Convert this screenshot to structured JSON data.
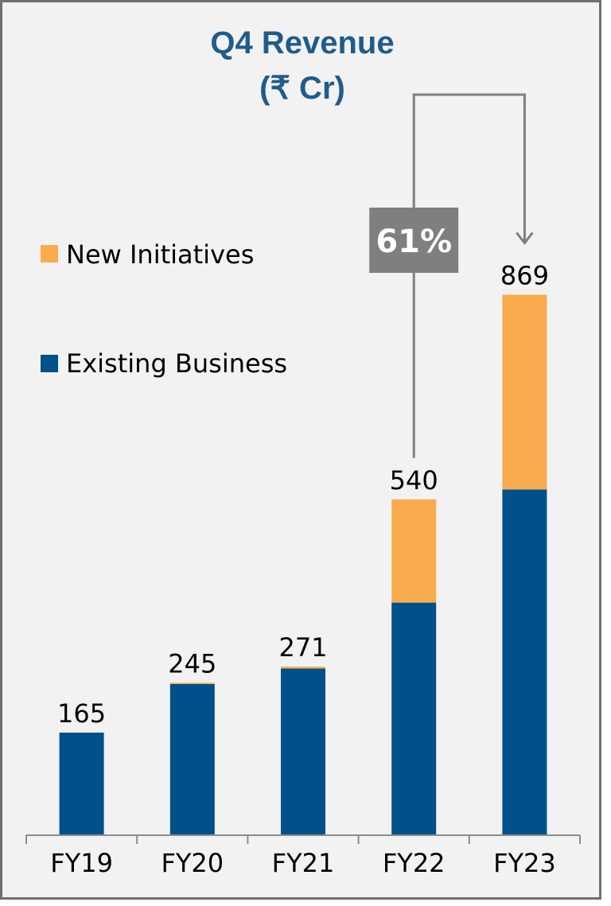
{
  "colors": {
    "existing": "#005089",
    "new": "#f9ac4d",
    "title": "#1f5c8b",
    "growth_badge": "#7f7f7f",
    "background": "#f2f2f2"
  },
  "chart_data": {
    "type": "bar",
    "stacked": true,
    "title": "Q4 Revenue",
    "subtitle": "(₹ Cr)",
    "categories": [
      "FY19",
      "FY20",
      "FY21",
      "FY22",
      "FY23"
    ],
    "series": [
      {
        "name": "Existing Business",
        "values": [
          165,
          243,
          268,
          374,
          556
        ]
      },
      {
        "name": "New Initiatives",
        "values": [
          0,
          2,
          3,
          166,
          313
        ]
      }
    ],
    "totals": [
      "165",
      "245",
      "271",
      "540",
      "869"
    ],
    "ylim": [
      0,
      1160
    ],
    "grid": false,
    "legend": {
      "position": "left",
      "order": [
        "New Initiatives",
        "Existing Business"
      ]
    },
    "annotation": {
      "text": "61%",
      "from": "FY22",
      "to": "FY23"
    }
  }
}
